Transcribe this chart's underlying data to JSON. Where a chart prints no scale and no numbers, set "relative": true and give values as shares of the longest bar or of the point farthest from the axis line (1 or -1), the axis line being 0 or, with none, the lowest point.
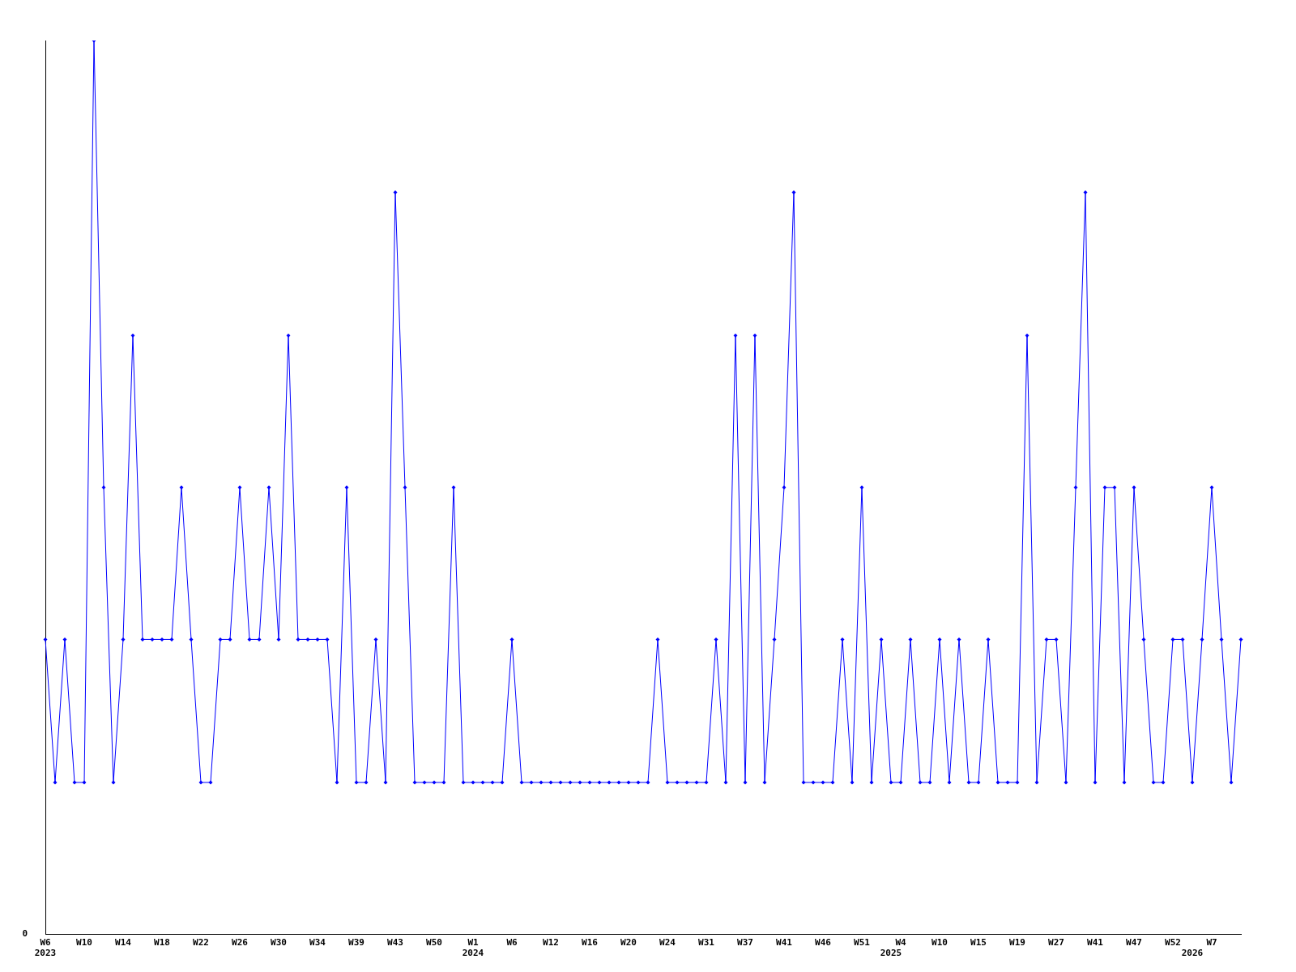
{
  "chart_data": {
    "type": "line",
    "relative": true,
    "annotations": [
      "0"
    ],
    "grid": false,
    "legend": false,
    "marker": "diamond",
    "line_style": "solid",
    "categories": [
      "W6\n2023",
      null,
      null,
      null,
      "W10",
      null,
      null,
      null,
      "W14",
      null,
      null,
      null,
      "W18",
      null,
      null,
      null,
      "W22",
      null,
      null,
      null,
      "W26",
      null,
      null,
      null,
      "W30",
      null,
      null,
      null,
      "W34",
      null,
      null,
      null,
      "W39",
      null,
      null,
      null,
      "W43",
      null,
      null,
      null,
      "W50",
      null,
      null,
      null,
      "W1\n2024",
      null,
      null,
      null,
      "W6",
      null,
      null,
      null,
      "W12",
      null,
      null,
      null,
      "W16",
      null,
      null,
      null,
      "W20",
      null,
      null,
      null,
      "W24",
      null,
      null,
      null,
      "W31",
      null,
      null,
      null,
      "W37",
      null,
      null,
      null,
      "W41",
      null,
      null,
      null,
      "W46",
      null,
      null,
      null,
      "W51",
      null,
      null,
      "\n2025",
      "W4",
      null,
      null,
      null,
      "W10",
      null,
      null,
      null,
      "W15",
      null,
      null,
      null,
      "W19",
      null,
      null,
      null,
      "W27",
      null,
      null,
      null,
      "W41",
      null,
      null,
      null,
      "W47",
      null,
      null,
      null,
      "W52",
      null,
      "\n2026",
      null,
      "W7",
      null,
      null,
      null
    ],
    "series": [
      {
        "color": "#0000ff",
        "values": [
          0.33,
          0.17,
          0.33,
          0.17,
          0.17,
          1,
          0.5,
          0.17,
          0.33,
          0.67,
          0.33,
          0.33,
          0.33,
          0.33,
          0.5,
          0.33,
          0.17,
          0.17,
          0.33,
          0.33,
          0.5,
          0.33,
          0.33,
          0.5,
          0.33,
          0.67,
          0.33,
          0.33,
          0.33,
          0.33,
          0.17,
          0.5,
          0.17,
          0.17,
          0.33,
          0.17,
          0.83,
          0.5,
          0.17,
          0.17,
          0.17,
          0.17,
          0.5,
          0.17,
          0.17,
          0.17,
          0.17,
          0.17,
          0.33,
          0.17,
          0.17,
          0.17,
          0.17,
          0.17,
          0.17,
          0.17,
          0.17,
          0.17,
          0.17,
          0.17,
          0.17,
          0.17,
          0.17,
          0.33,
          0.17,
          0.17,
          0.17,
          0.17,
          0.17,
          0.33,
          0.17,
          0.67,
          0.17,
          0.67,
          0.17,
          0.33,
          0.5,
          0.83,
          0.17,
          0.17,
          0.17,
          0.17,
          0.33,
          0.17,
          0.5,
          0.17,
          0.33,
          0.17,
          0.17,
          0.33,
          0.17,
          0.17,
          0.33,
          0.17,
          0.33,
          0.17,
          0.17,
          0.33,
          0.17,
          0.17,
          0.17,
          0.67,
          0.17,
          0.33,
          0.33,
          0.17,
          0.5,
          0.83,
          0.17,
          0.5,
          0.5,
          0.17,
          0.5,
          0.33,
          0.17,
          0.17,
          0.33,
          0.33,
          0.17,
          0.33,
          0.5,
          0.33,
          0.17,
          0.33
        ]
      }
    ]
  }
}
